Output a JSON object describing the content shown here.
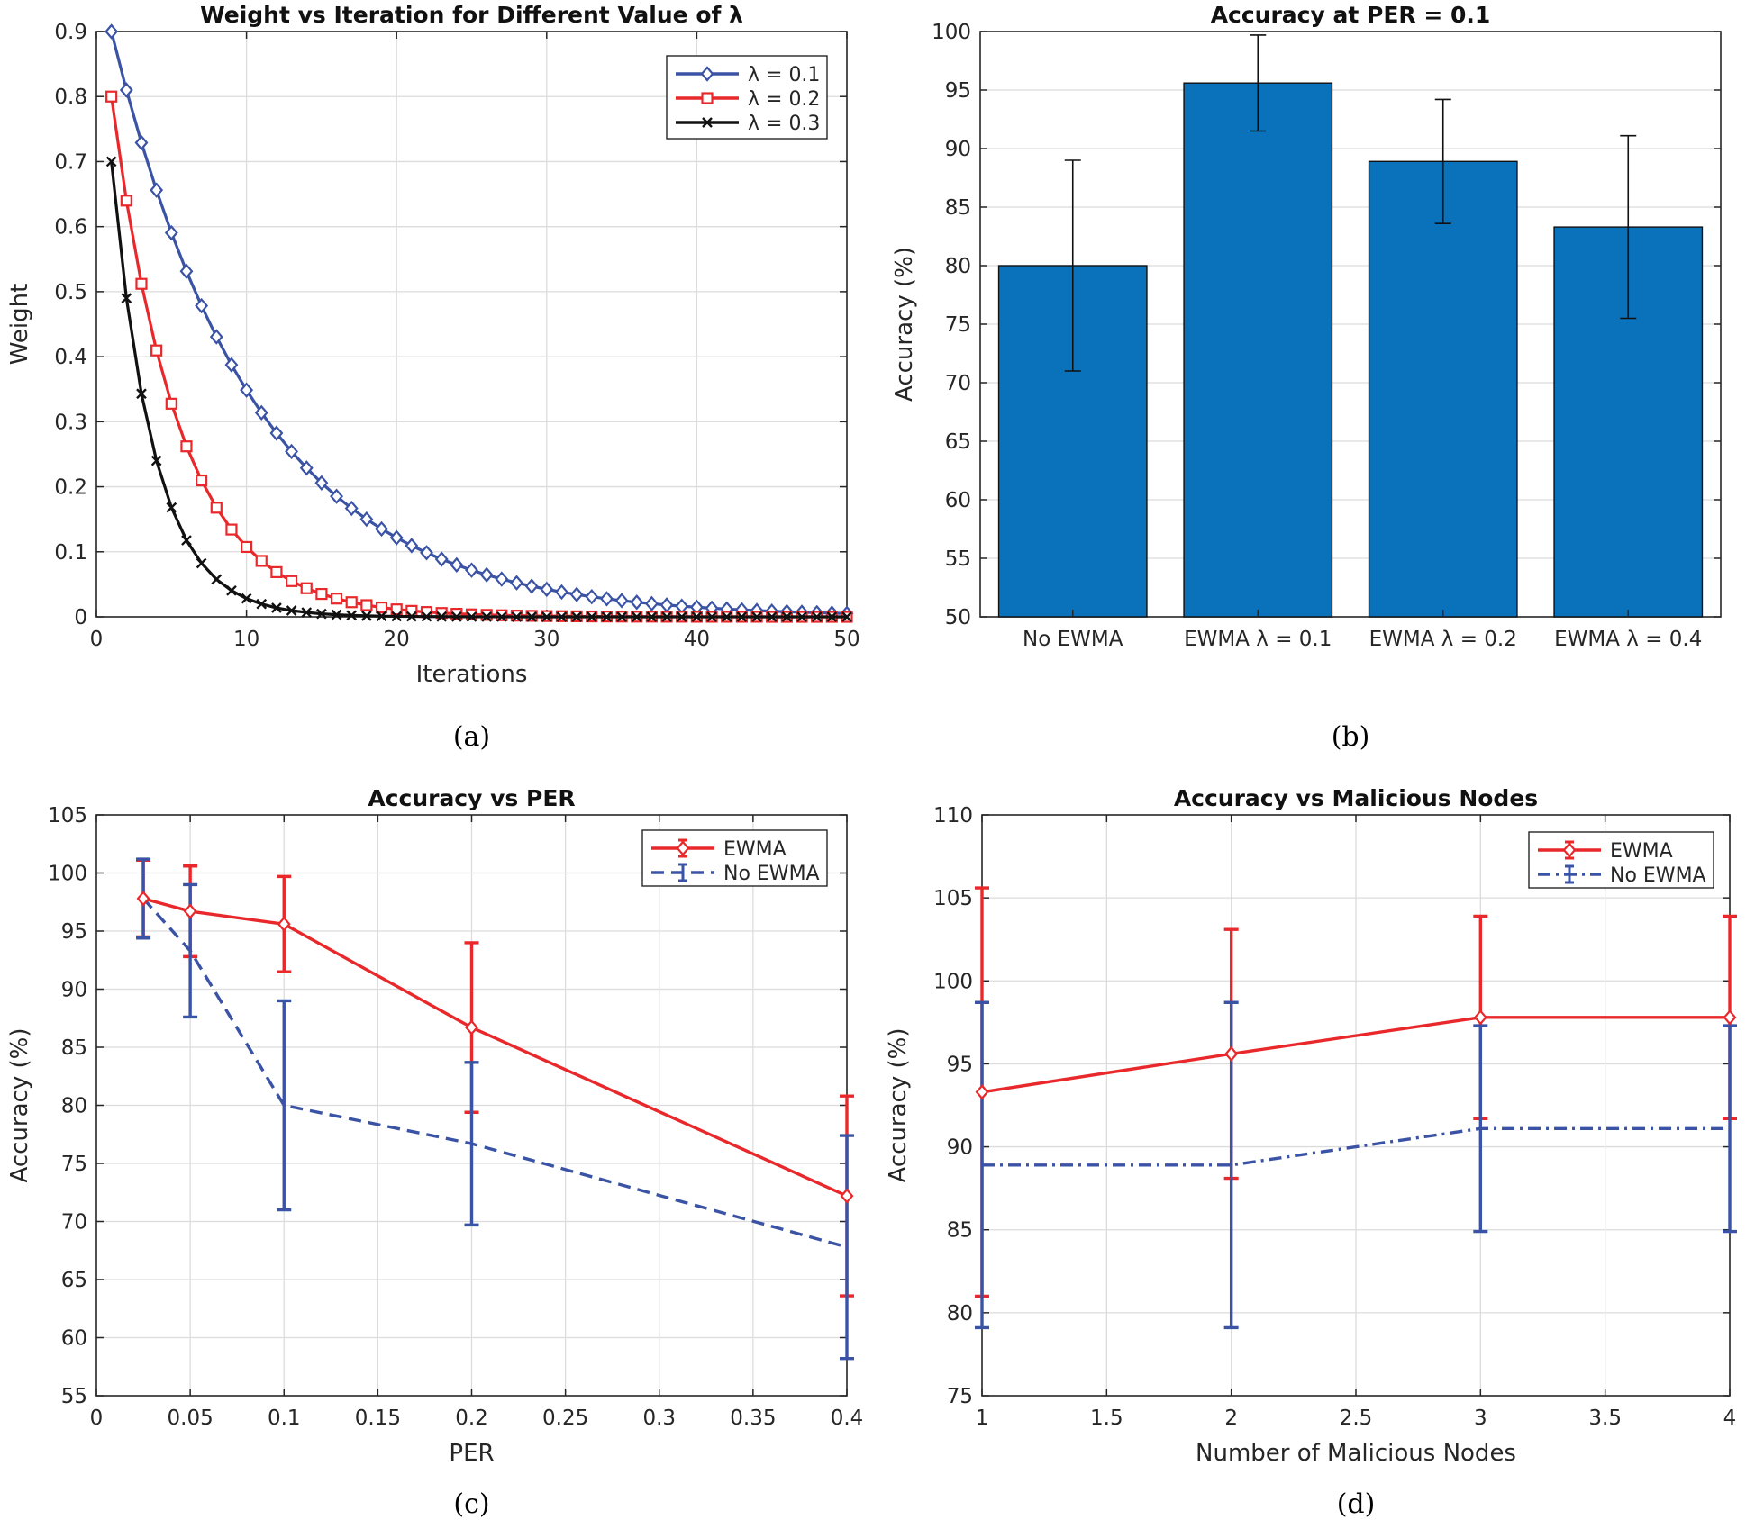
{
  "colors": {
    "blue": "#3b53a5",
    "red": "#e8282b",
    "black": "#111111",
    "bar": "#0a72ba"
  },
  "chart_data": [
    {
      "id": "a",
      "type": "line",
      "title": "Weight vs Iteration for Different Value of λ",
      "xlabel": "Iterations",
      "ylabel": "Weight",
      "caption": "(a)",
      "xlim": [
        0,
        50
      ],
      "ylim": [
        0,
        0.9
      ],
      "xticks": [
        0,
        10,
        20,
        30,
        40,
        50
      ],
      "yticks": [
        0,
        0.1,
        0.2,
        0.3,
        0.4,
        0.5,
        0.6,
        0.7,
        0.8,
        0.9
      ],
      "xtick_labels": [
        "0",
        "10",
        "20",
        "30",
        "40",
        "50"
      ],
      "ytick_labels": [
        "0",
        "0.1",
        "0.2",
        "0.3",
        "0.4",
        "0.5",
        "0.6",
        "0.7",
        "0.8",
        "0.9"
      ],
      "grid": true,
      "legend_position": "top-right",
      "x": [
        1,
        2,
        3,
        4,
        5,
        6,
        7,
        8,
        9,
        10,
        11,
        12,
        13,
        14,
        15,
        16,
        17,
        18,
        19,
        20,
        21,
        22,
        23,
        24,
        25,
        26,
        27,
        28,
        29,
        30,
        31,
        32,
        33,
        34,
        35,
        36,
        37,
        38,
        39,
        40,
        41,
        42,
        43,
        44,
        45,
        46,
        47,
        48,
        49,
        50
      ],
      "series": [
        {
          "name": "λ = 0.1",
          "color": "#3b53a5",
          "marker": "diamond",
          "values": [
            0.9,
            0.81,
            0.729,
            0.6561,
            0.5905,
            0.5314,
            0.4783,
            0.4305,
            0.3874,
            0.3487,
            0.3138,
            0.2824,
            0.2542,
            0.2288,
            0.2059,
            0.1853,
            0.1668,
            0.1501,
            0.1351,
            0.1216,
            0.1094,
            0.0985,
            0.0886,
            0.0798,
            0.0718,
            0.0646,
            0.0581,
            0.0523,
            0.0471,
            0.0424,
            0.0382,
            0.0343,
            0.0309,
            0.0278,
            0.025,
            0.0225,
            0.0203,
            0.0182,
            0.0164,
            0.0148,
            0.0133,
            0.012,
            0.0108,
            0.0097,
            0.0087,
            0.0079,
            0.0071,
            0.0064,
            0.0057,
            0.0052
          ]
        },
        {
          "name": "λ = 0.2",
          "color": "#e8282b",
          "marker": "square",
          "values": [
            0.8,
            0.64,
            0.512,
            0.4096,
            0.3277,
            0.2621,
            0.2097,
            0.1678,
            0.1342,
            0.1074,
            0.0859,
            0.0687,
            0.055,
            0.044,
            0.0352,
            0.0281,
            0.0225,
            0.018,
            0.0144,
            0.0115,
            0.0092,
            0.0074,
            0.0059,
            0.0047,
            0.0038,
            0.003,
            0.0024,
            0.0019,
            0.0015,
            0.0012,
            0.001,
            0.0008,
            0.0006,
            0.0005,
            0.0004,
            0.0003,
            0.0003,
            0.0002,
            0.0002,
            0.0001,
            0.0001,
            0.0001,
            0.0001,
            0.0001,
            0.0,
            0.0,
            0.0,
            0.0,
            0.0,
            0.0
          ]
        },
        {
          "name": "λ = 0.3",
          "color": "#111111",
          "marker": "x",
          "values": [
            0.7,
            0.49,
            0.343,
            0.2401,
            0.1681,
            0.1176,
            0.0824,
            0.0576,
            0.0404,
            0.0282,
            0.0198,
            0.0138,
            0.0097,
            0.0068,
            0.0047,
            0.0033,
            0.0023,
            0.0016,
            0.0011,
            0.0008,
            0.0006,
            0.0004,
            0.0003,
            0.0002,
            0.0001,
            0.0001,
            0.0001,
            0.0,
            0.0,
            0.0,
            0.0,
            0.0,
            0.0,
            0.0,
            0.0,
            0.0,
            0.0,
            0.0,
            0.0,
            0.0,
            0.0,
            0.0,
            0.0,
            0.0,
            0.0,
            0.0,
            0.0,
            0.0,
            0.0,
            0.0
          ]
        }
      ]
    },
    {
      "id": "b",
      "type": "bar",
      "title": "Accuracy at PER = 0.1",
      "xlabel": "",
      "ylabel": "Accuracy (%)",
      "caption": "(b)",
      "ylim": [
        50,
        100
      ],
      "yticks": [
        50,
        55,
        60,
        65,
        70,
        75,
        80,
        85,
        90,
        95,
        100
      ],
      "ytick_labels": [
        "50",
        "55",
        "60",
        "65",
        "70",
        "75",
        "80",
        "85",
        "90",
        "95",
        "100"
      ],
      "grid": true,
      "categories": [
        "No EWMA",
        "EWMA λ = 0.1",
        "EWMA λ = 0.2",
        "EWMA λ = 0.4"
      ],
      "values": [
        80,
        95.6,
        88.9,
        83.3
      ],
      "errors": [
        9,
        4.1,
        5.3,
        7.8
      ],
      "color": "#0a72ba"
    },
    {
      "id": "c",
      "type": "line",
      "title": "Accuracy vs PER",
      "xlabel": "PER",
      "ylabel": "Accuracy (%)",
      "caption": "(c)",
      "xlim": [
        0,
        0.4
      ],
      "ylim": [
        55,
        105
      ],
      "xticks": [
        0,
        0.05,
        0.1,
        0.15,
        0.2,
        0.25,
        0.3,
        0.35,
        0.4
      ],
      "yticks": [
        55,
        60,
        65,
        70,
        75,
        80,
        85,
        90,
        95,
        100,
        105
      ],
      "xtick_labels": [
        "0",
        "0.05",
        "0.1",
        "0.15",
        "0.2",
        "0.25",
        "0.3",
        "0.35",
        "0.4"
      ],
      "ytick_labels": [
        "55",
        "60",
        "65",
        "70",
        "75",
        "80",
        "85",
        "90",
        "95",
        "100",
        "105"
      ],
      "grid": true,
      "legend_position": "top-right",
      "series": [
        {
          "name": "EWMA",
          "color": "#e8282b",
          "dash": "solid",
          "marker": "diamond",
          "x": [
            0.025,
            0.05,
            0.1,
            0.2,
            0.4
          ],
          "values": [
            97.8,
            96.7,
            95.6,
            86.7,
            72.2
          ],
          "errors": [
            3.3,
            3.9,
            4.1,
            7.3,
            8.6
          ]
        },
        {
          "name": "No EWMA",
          "color": "#3b53a5",
          "dash": "dashed",
          "marker": "none",
          "x": [
            0.025,
            0.05,
            0.1,
            0.2,
            0.4
          ],
          "values": [
            97.8,
            93.3,
            80,
            76.7,
            67.8
          ],
          "errors": [
            3.4,
            5.7,
            9,
            7,
            9.6
          ]
        }
      ]
    },
    {
      "id": "d",
      "type": "line",
      "title": "Accuracy vs Malicious Nodes",
      "xlabel": "Number of Malicious Nodes",
      "ylabel": "Accuracy (%)",
      "caption": "(d)",
      "xlim": [
        1,
        4
      ],
      "ylim": [
        75,
        110
      ],
      "xticks": [
        1,
        1.5,
        2,
        2.5,
        3,
        3.5,
        4
      ],
      "yticks": [
        75,
        80,
        85,
        90,
        95,
        100,
        105,
        110
      ],
      "xtick_labels": [
        "1",
        "1.5",
        "2",
        "2.5",
        "3",
        "3.5",
        "4"
      ],
      "ytick_labels": [
        "75",
        "80",
        "85",
        "90",
        "95",
        "100",
        "105",
        "110"
      ],
      "grid": true,
      "legend_position": "top-right",
      "series": [
        {
          "name": "EWMA",
          "color": "#e8282b",
          "dash": "solid",
          "marker": "diamond",
          "x": [
            1,
            2,
            3,
            4
          ],
          "values": [
            93.3,
            95.6,
            97.8,
            97.8
          ],
          "errors": [
            12.3,
            7.5,
            6.1,
            6.1
          ]
        },
        {
          "name": "No EWMA",
          "color": "#3b53a5",
          "dash": "dashdot",
          "marker": "none",
          "x": [
            1,
            2,
            3,
            4
          ],
          "values": [
            88.9,
            88.9,
            91.1,
            91.1
          ],
          "errors": [
            9.8,
            9.8,
            6.2,
            6.2
          ]
        }
      ]
    }
  ]
}
